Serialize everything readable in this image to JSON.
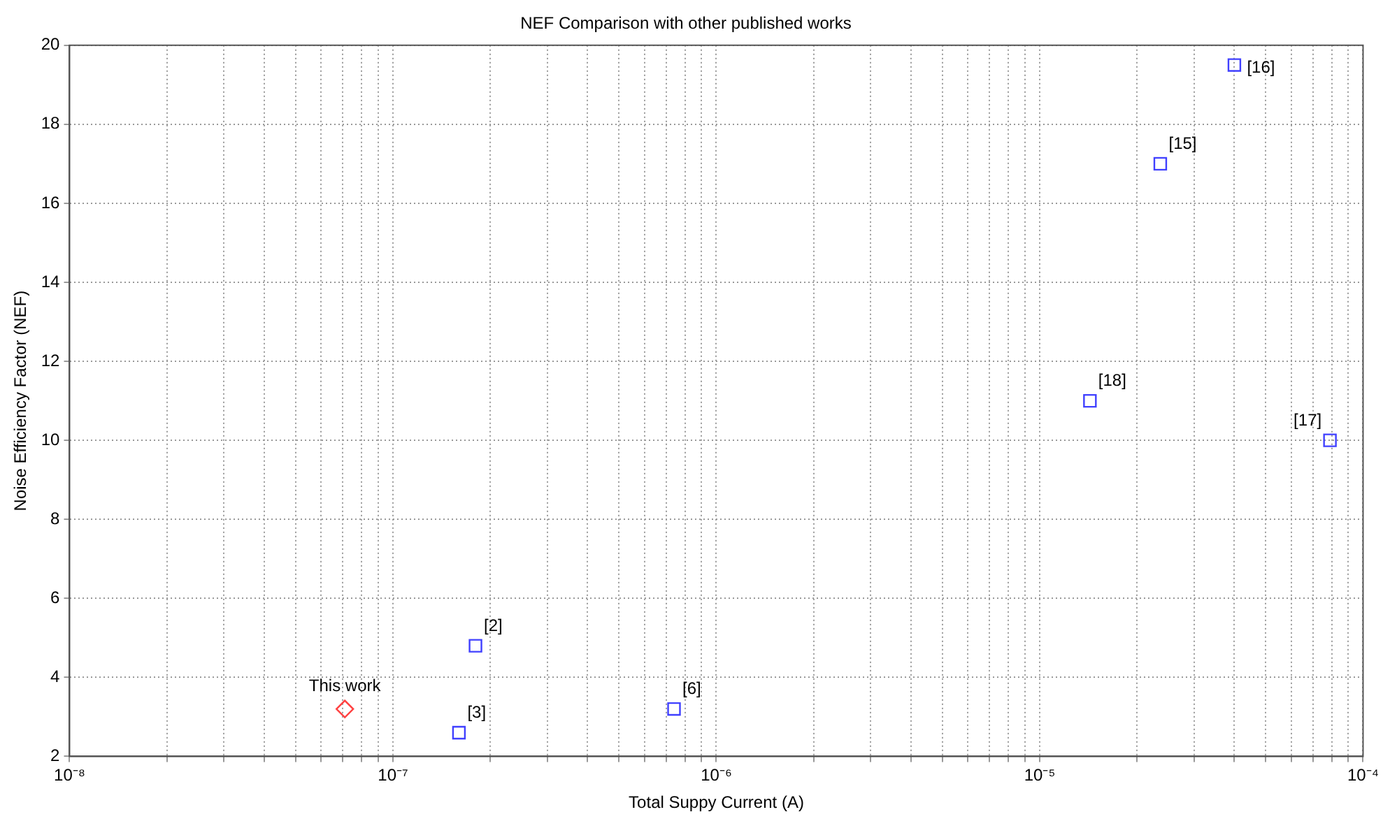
{
  "chart_data": {
    "type": "scatter",
    "title": "NEF Comparison with other published works",
    "xlabel": "Total Suppy Current (A)",
    "ylabel": "Noise Efficiency Factor (NEF)",
    "log": "x",
    "grid": true,
    "legend": false,
    "xlim": [
      1e-08,
      0.0001
    ],
    "ylim": [
      2,
      20
    ],
    "xticks": [
      {
        "value": 1e-08,
        "label": "10⁻⁸"
      },
      {
        "value": 2e-08,
        "label": null
      },
      {
        "value": 3e-08,
        "label": null
      },
      {
        "value": 4e-08,
        "label": null
      },
      {
        "value": 5e-08,
        "label": null
      },
      {
        "value": 6e-08,
        "label": null
      },
      {
        "value": 7e-08,
        "label": null
      },
      {
        "value": 8e-08,
        "label": null
      },
      {
        "value": 9e-08,
        "label": null
      },
      {
        "value": 1e-07,
        "label": "10⁻⁷"
      },
      {
        "value": 2e-07,
        "label": null
      },
      {
        "value": 3e-07,
        "label": null
      },
      {
        "value": 4e-07,
        "label": null
      },
      {
        "value": 5e-07,
        "label": null
      },
      {
        "value": 6e-07,
        "label": null
      },
      {
        "value": 7e-07,
        "label": null
      },
      {
        "value": 8e-07,
        "label": null
      },
      {
        "value": 9e-07,
        "label": null
      },
      {
        "value": 1e-06,
        "label": "10⁻⁶"
      },
      {
        "value": 2e-06,
        "label": null
      },
      {
        "value": 3e-06,
        "label": null
      },
      {
        "value": 4e-06,
        "label": null
      },
      {
        "value": 5e-06,
        "label": null
      },
      {
        "value": 6e-06,
        "label": null
      },
      {
        "value": 7e-06,
        "label": null
      },
      {
        "value": 8e-06,
        "label": null
      },
      {
        "value": 9e-06,
        "label": null
      },
      {
        "value": 1e-05,
        "label": "10⁻⁵"
      },
      {
        "value": 2e-05,
        "label": null
      },
      {
        "value": 3e-05,
        "label": null
      },
      {
        "value": 4e-05,
        "label": null
      },
      {
        "value": 5e-05,
        "label": null
      },
      {
        "value": 6e-05,
        "label": null
      },
      {
        "value": 7e-05,
        "label": null
      },
      {
        "value": 8e-05,
        "label": null
      },
      {
        "value": 9e-05,
        "label": null
      },
      {
        "value": 0.0001,
        "label": "10⁻⁴"
      }
    ],
    "yticks": [
      2,
      4,
      6,
      8,
      10,
      12,
      14,
      16,
      18,
      20
    ],
    "series": [
      {
        "color": "#ff4040",
        "marker": "diamond",
        "x": [
          7.1e-08
        ],
        "values": [
          3.2
        ]
      },
      {
        "color": "#4040ff",
        "marker": "square",
        "x": [
          1.6e-07,
          1.8e-07,
          7.4e-07,
          1.43e-05,
          2.36e-05,
          4e-05,
          7.9e-05
        ],
        "values": [
          2.6,
          4.8,
          3.2,
          11,
          17,
          19.5,
          10
        ]
      }
    ],
    "annotations": [
      {
        "text": "This work",
        "x": 7.1e-08,
        "y": 3.2
      },
      {
        "text": "[3]",
        "x": 1.6e-07,
        "y": 2.6
      },
      {
        "text": "[2]",
        "x": 1.8e-07,
        "y": 4.8
      },
      {
        "text": "[6]",
        "x": 7.4e-07,
        "y": 3.2
      },
      {
        "text": "[18]",
        "x": 1.43e-05,
        "y": 11
      },
      {
        "text": "[15]",
        "x": 2.36e-05,
        "y": 17
      },
      {
        "text": "[16]",
        "x": 4e-05,
        "y": 19.5
      },
      {
        "text": "[17]",
        "x": 7.9e-05,
        "y": 10
      }
    ]
  }
}
